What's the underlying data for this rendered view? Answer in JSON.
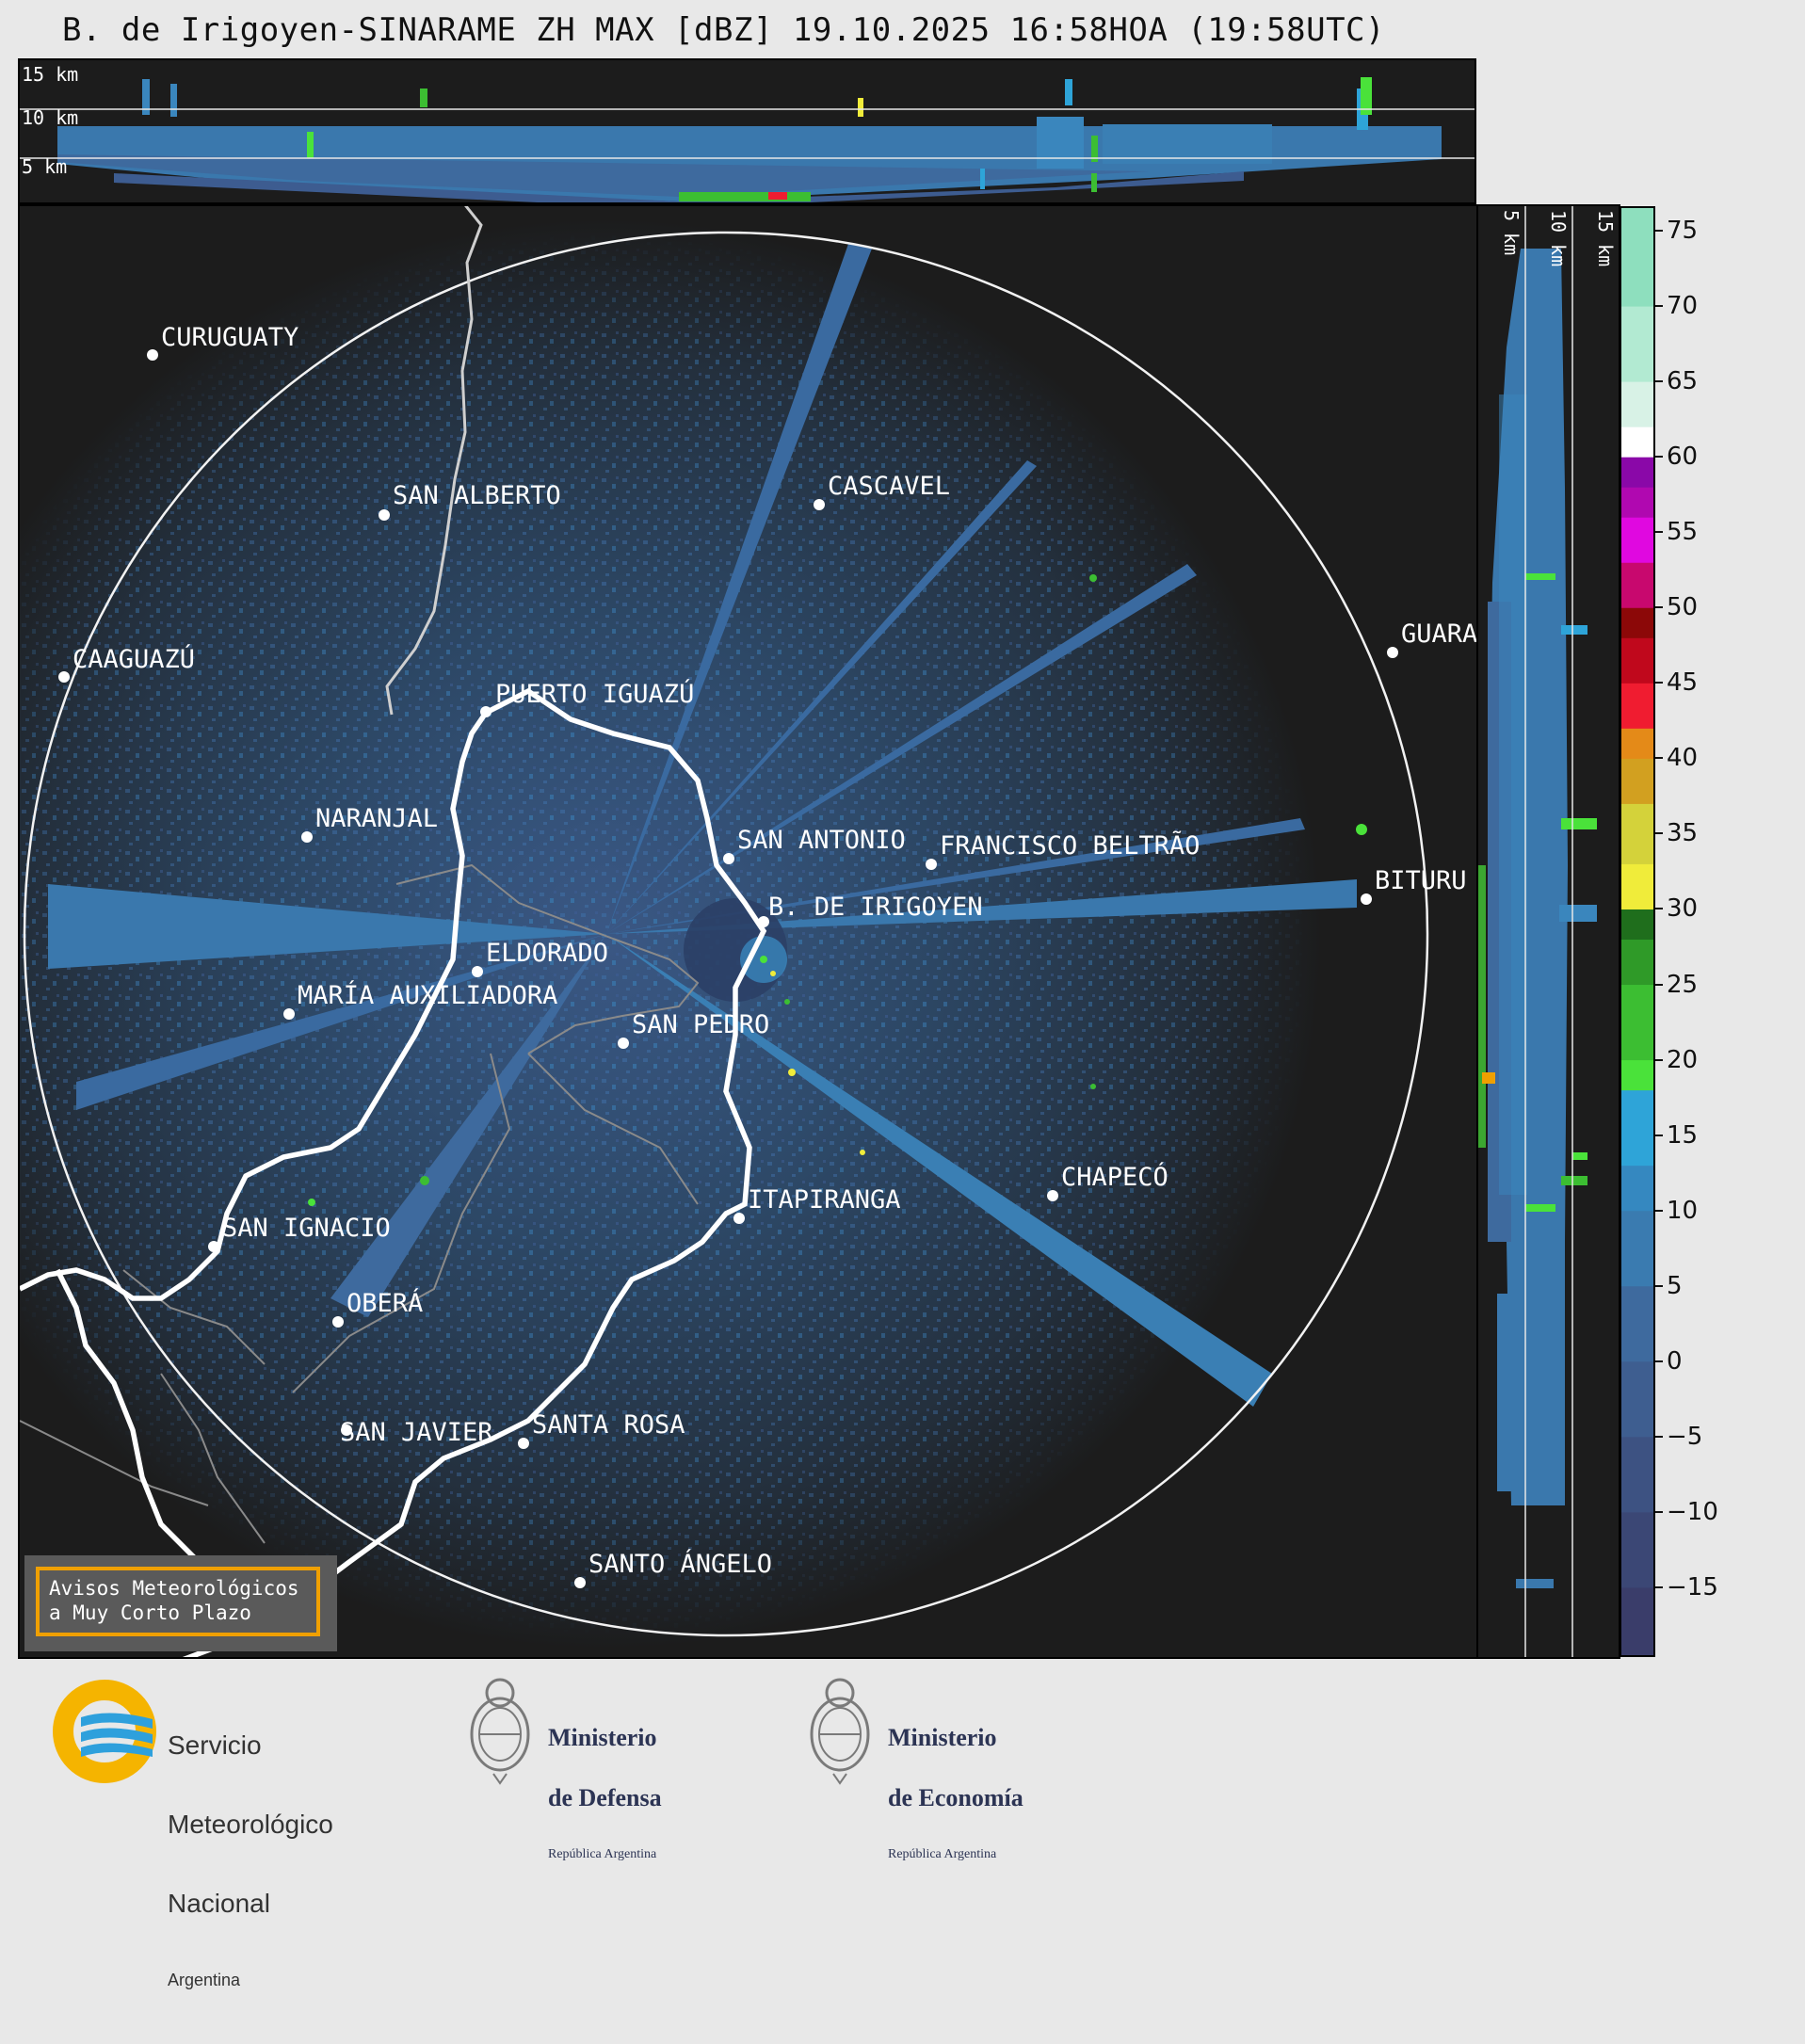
{
  "title": "B. de Irigoyen-SINARAME ZH MAX [dBZ] 19.10.2025 16:58HOA (19:58UTC)",
  "top_panel": {
    "heights": [
      "15 km",
      "10 km",
      "5 km"
    ]
  },
  "side_panel": {
    "heights": [
      "5 km",
      "10 km",
      "15 km"
    ]
  },
  "colorbar": {
    "ticks": [
      "75",
      "70",
      "65",
      "60",
      "55",
      "50",
      "45",
      "40",
      "35",
      "30",
      "25",
      "20",
      "15",
      "10",
      "5",
      "0",
      "−5",
      "−10",
      "−15"
    ],
    "tick_values": [
      75,
      70,
      65,
      60,
      55,
      50,
      45,
      40,
      35,
      30,
      25,
      20,
      15,
      10,
      5,
      0,
      -5,
      -10,
      -15
    ],
    "min": -19.5,
    "max": 76.5,
    "bands": [
      {
        "from": -19.5,
        "to": -15,
        "color": "#3a3d6a"
      },
      {
        "from": -15,
        "to": -10,
        "color": "#3b4775"
      },
      {
        "from": -10,
        "to": -5,
        "color": "#3d5282"
      },
      {
        "from": -5,
        "to": 0,
        "color": "#3e5e90"
      },
      {
        "from": 0,
        "to": 5,
        "color": "#3e6a9e"
      },
      {
        "from": 5,
        "to": 10,
        "color": "#3a7bb0"
      },
      {
        "from": 10,
        "to": 13,
        "color": "#3588c0"
      },
      {
        "from": 13,
        "to": 18,
        "color": "#2ea4d8"
      },
      {
        "from": 18,
        "to": 20,
        "color": "#4ae23a"
      },
      {
        "from": 20,
        "to": 25,
        "color": "#3cbe32"
      },
      {
        "from": 25,
        "to": 28,
        "color": "#2f9a28"
      },
      {
        "from": 28,
        "to": 30,
        "color": "#1f6e1c"
      },
      {
        "from": 30,
        "to": 33,
        "color": "#f0ec3a"
      },
      {
        "from": 33,
        "to": 37,
        "color": "#d4d23a"
      },
      {
        "from": 37,
        "to": 40,
        "color": "#d2a020"
      },
      {
        "from": 40,
        "to": 42,
        "color": "#e48a18"
      },
      {
        "from": 42,
        "to": 45,
        "color": "#f01c30"
      },
      {
        "from": 45,
        "to": 48,
        "color": "#c0081c"
      },
      {
        "from": 48,
        "to": 50,
        "color": "#8c0808"
      },
      {
        "from": 50,
        "to": 53,
        "color": "#c8086e"
      },
      {
        "from": 53,
        "to": 56,
        "color": "#e008e0"
      },
      {
        "from": 56,
        "to": 58,
        "color": "#b008b0"
      },
      {
        "from": 58,
        "to": 60,
        "color": "#8a08a8"
      },
      {
        "from": 60,
        "to": 62,
        "color": "#ffffff"
      },
      {
        "from": 62,
        "to": 65,
        "color": "#d8f2e6"
      },
      {
        "from": 65,
        "to": 70,
        "color": "#b2ead2"
      },
      {
        "from": 70,
        "to": 76.5,
        "color": "#8edfbe"
      }
    ]
  },
  "cities": [
    {
      "name": "CURUGUATY"
    },
    {
      "name": "SAN ALBERTO"
    },
    {
      "name": "CASCAVEL"
    },
    {
      "name": "CAAGUAZÚ"
    },
    {
      "name": "GUARA"
    },
    {
      "name": "PUERTO IGUAZÚ"
    },
    {
      "name": "NARANJAL"
    },
    {
      "name": "SAN ANTONIO"
    },
    {
      "name": "FRANCISCO BELTRÃO"
    },
    {
      "name": "B. DE IRIGOYEN"
    },
    {
      "name": "BITURU"
    },
    {
      "name": "ELDORADO"
    },
    {
      "name": "MARÍA AUXILIADORA"
    },
    {
      "name": "SAN PEDRO"
    },
    {
      "name": "CHAPECÓ"
    },
    {
      "name": "ITAPIRANGA"
    },
    {
      "name": "SAN IGNACIO"
    },
    {
      "name": "OBERÁ"
    },
    {
      "name": "SAN JAVIER"
    },
    {
      "name": "SANTA ROSA"
    },
    {
      "name": "SANTO ÁNGELO"
    }
  ],
  "warnings_box": {
    "line1": "Avisos Meteorológicos",
    "line2": "a Muy Corto Plazo"
  },
  "footer": {
    "smn": {
      "line1": "Servicio",
      "line2": "Meteorológico",
      "line3": "Nacional",
      "line4": "Argentina"
    },
    "defensa": {
      "line1": "Ministerio",
      "line2": "de Defensa",
      "line3": "República Argentina"
    },
    "economia": {
      "line1": "Ministerio",
      "line2": "de Economía",
      "line3": "República Argentina"
    }
  },
  "colors": {
    "background": "#e8e8e8",
    "panel": "#1c1c1c",
    "echo": "#3e6a9e",
    "smn_yellow": "#f5b400",
    "smn_blue": "#2ea0dc",
    "ministry_navy": "#2c3454"
  }
}
